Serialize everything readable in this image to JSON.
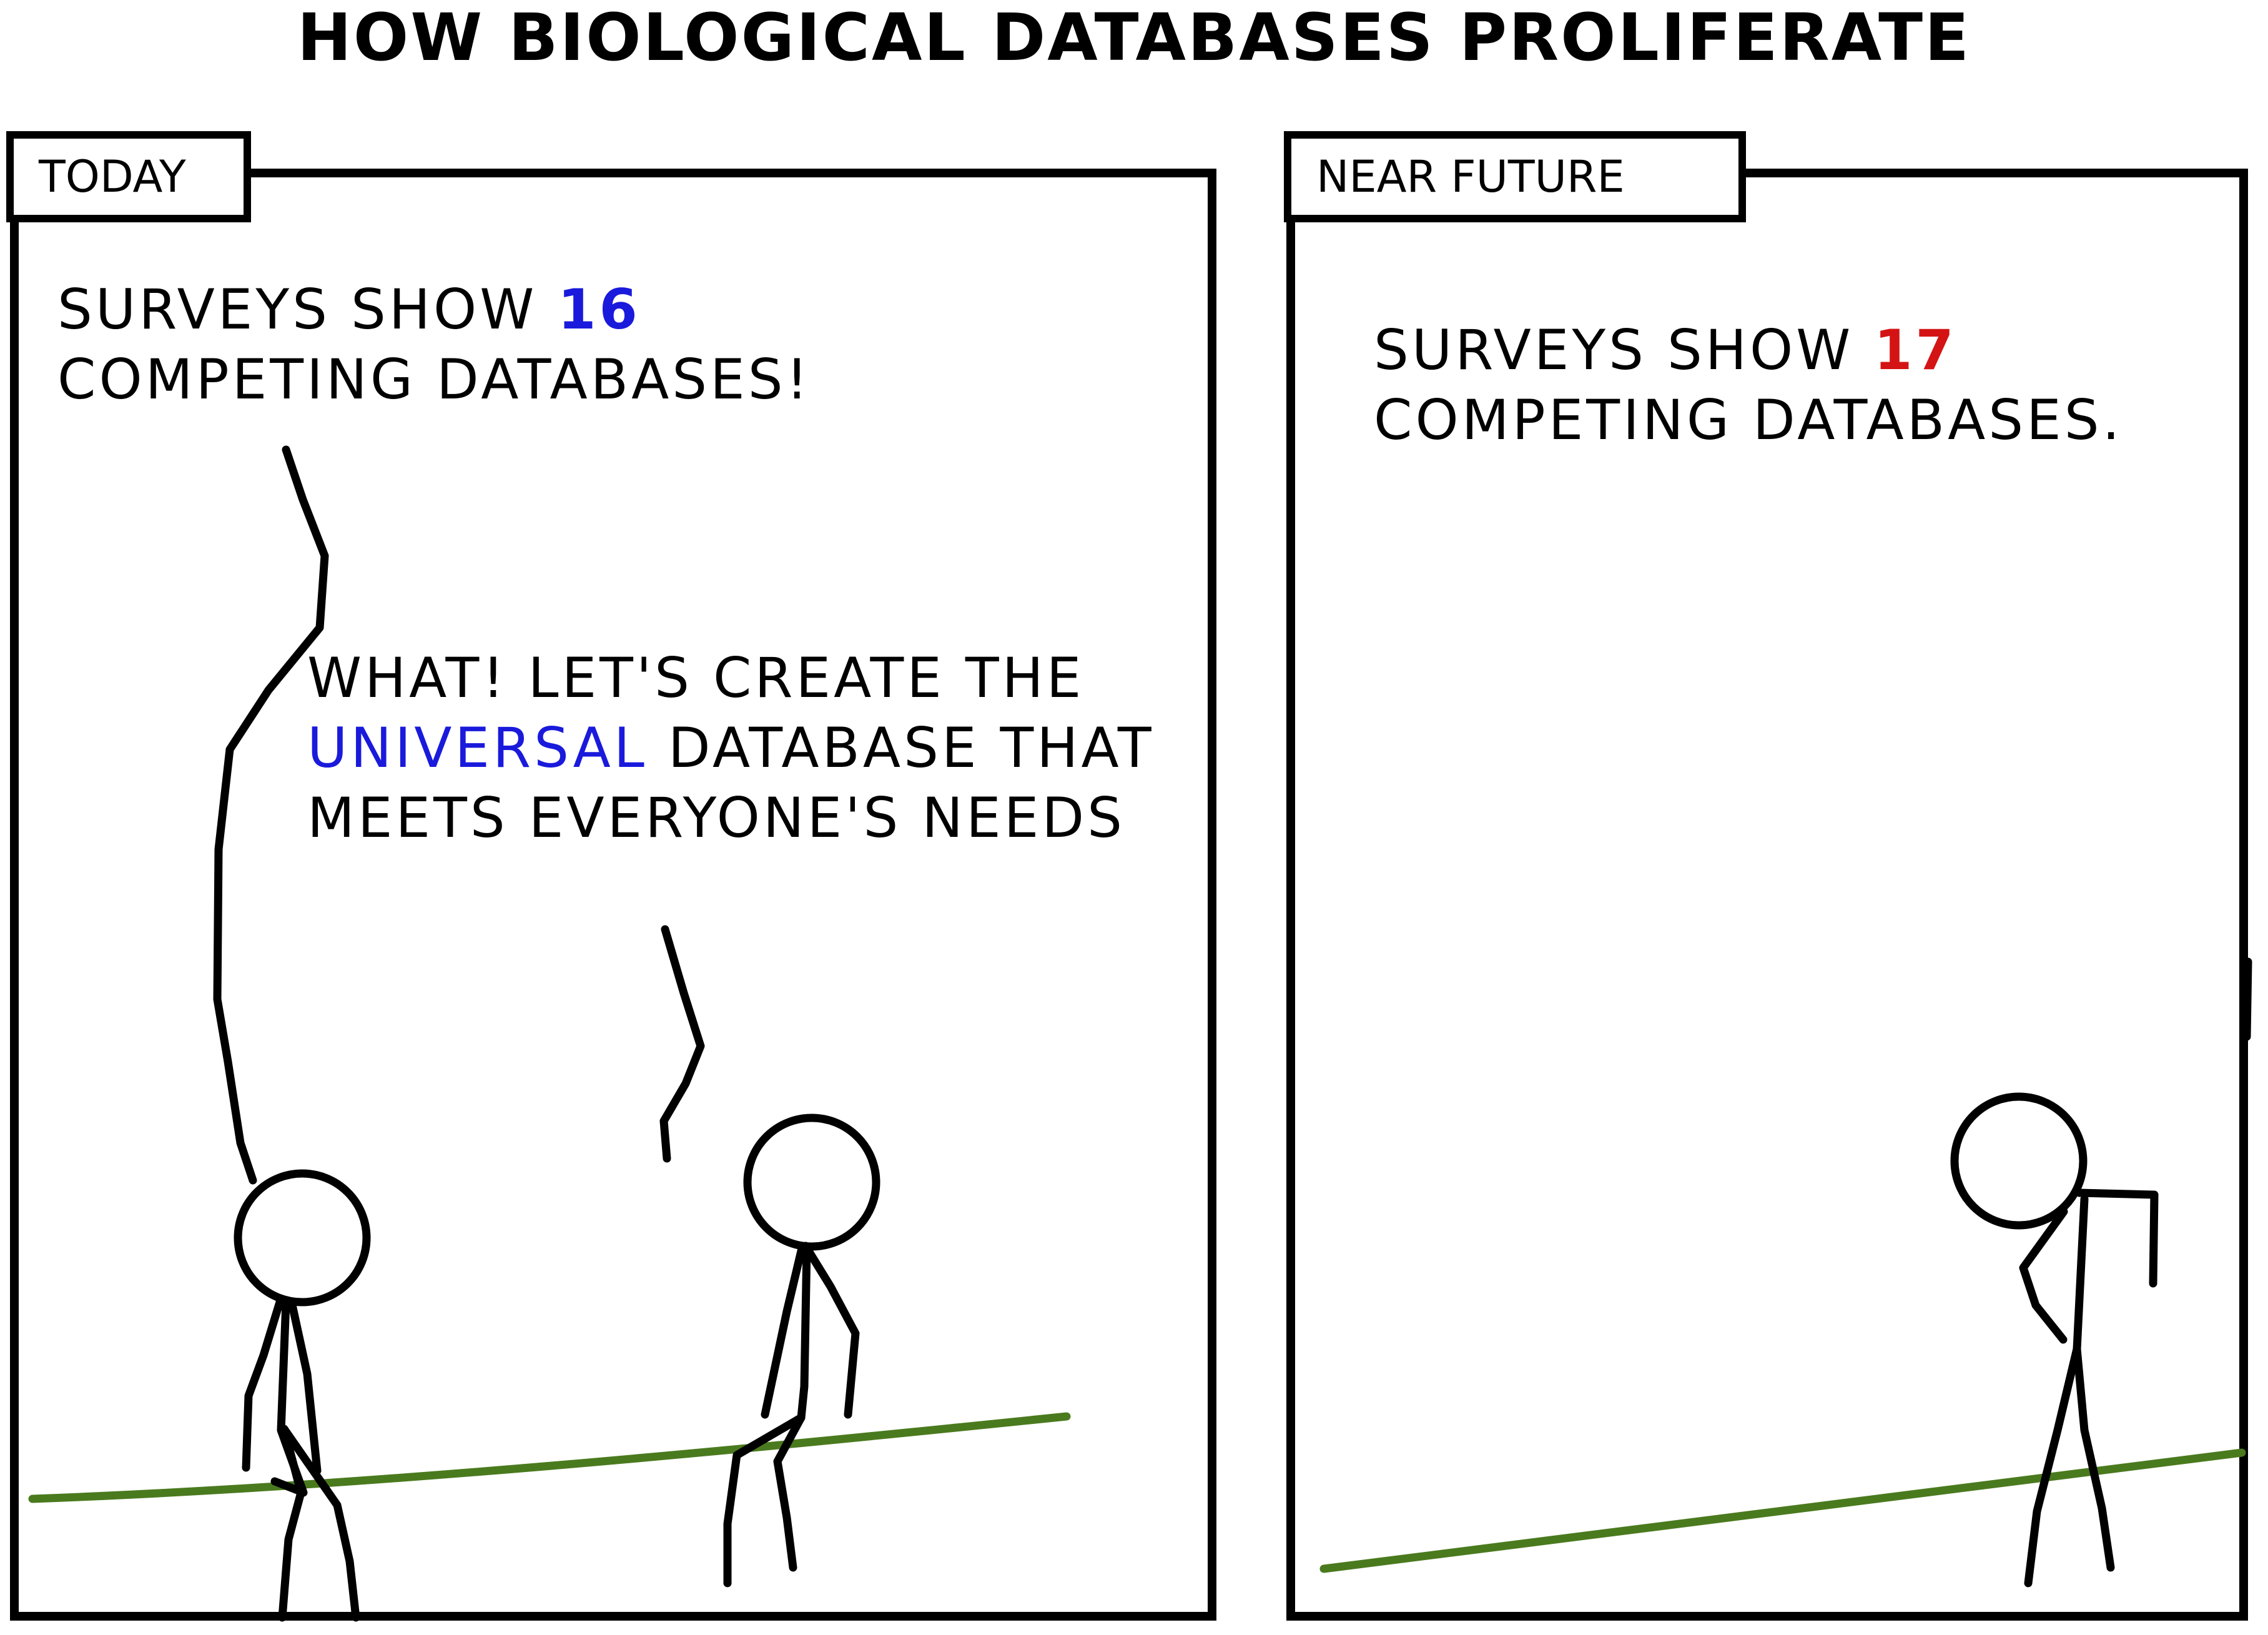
{
  "comic": {
    "title": "HOW BIOLOGICAL DATABASES PROLIFERATE"
  },
  "panels": [
    {
      "label": "TODAY",
      "speech_1": {
        "line1_prefix": "SURVEYS SHOW ",
        "count": "16",
        "line2": "COMPETING DATABASES!"
      },
      "speech_2": {
        "line1": "WHAT! LET'S CREATE THE",
        "highlight": "UNIVERSAL",
        "line2_suffix": " DATABASE THAT",
        "line3": "MEETS EVERYONE'S NEEDS"
      }
    },
    {
      "label": "NEAR FUTURE",
      "speech_1": {
        "line1_prefix": "SURVEYS SHOW ",
        "count": "17",
        "line2": "COMPETING DATABASES."
      }
    }
  ],
  "colors": {
    "ink": "#000000",
    "ground": "#4a7a1e",
    "highlight_blue": "#1a1adc",
    "highlight_red": "#d41414"
  }
}
